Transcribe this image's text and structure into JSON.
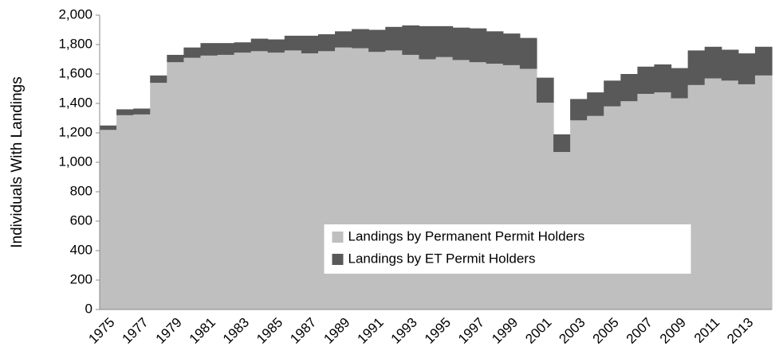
{
  "chart_data": {
    "type": "stacked-bar",
    "y_label": "Individuals With Landings",
    "categories": [
      "1975",
      null,
      "1977",
      null,
      "1979",
      null,
      "1981",
      null,
      "1983",
      null,
      "1985",
      null,
      "1987",
      null,
      "1989",
      null,
      "1991",
      null,
      "1993",
      null,
      "1995",
      null,
      "1997",
      null,
      "1999",
      null,
      "2001",
      null,
      "2003",
      null,
      "2005",
      null,
      "2007",
      null,
      "2009",
      null,
      "2011",
      null,
      "2013",
      null
    ],
    "series": [
      {
        "name": "Landings by Permanent Permit Holders",
        "color": "#bfbfbf",
        "values": [
          1220,
          1320,
          1325,
          1540,
          1680,
          1710,
          1725,
          1730,
          1745,
          1755,
          1745,
          1760,
          1740,
          1755,
          1780,
          1775,
          1750,
          1760,
          1730,
          1700,
          1715,
          1695,
          1680,
          1670,
          1660,
          1635,
          1405,
          1070,
          1285,
          1315,
          1380,
          1415,
          1465,
          1475,
          1435,
          1525,
          1570,
          1555,
          1530,
          1590
        ]
      },
      {
        "name": "Landings by ET Permit Holders",
        "color": "#595959",
        "values": [
          30,
          40,
          40,
          50,
          50,
          70,
          85,
          80,
          70,
          85,
          90,
          100,
          120,
          115,
          110,
          130,
          150,
          160,
          200,
          225,
          210,
          220,
          230,
          220,
          215,
          210,
          170,
          120,
          145,
          160,
          175,
          185,
          185,
          190,
          205,
          235,
          215,
          210,
          210,
          195
        ]
      }
    ],
    "ylim": [
      0,
      2000
    ],
    "yticks": [
      0,
      200,
      400,
      600,
      800,
      {
        "value": 1000,
        "label": "1,000"
      },
      {
        "value": 1200,
        "label": "1,200"
      },
      {
        "value": 1400,
        "label": "1,400"
      },
      {
        "value": 1600,
        "label": "1,600"
      },
      {
        "value": 1800,
        "label": "1,800"
      },
      {
        "value": 2000,
        "label": "2,000"
      }
    ],
    "legend": "bottom-center"
  }
}
